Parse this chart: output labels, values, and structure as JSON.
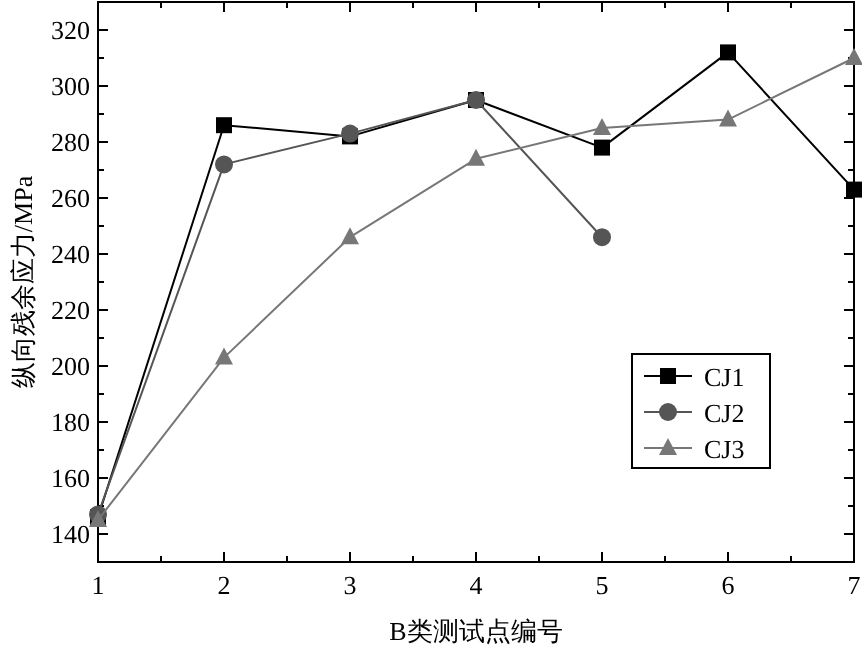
{
  "chart_data": {
    "type": "line",
    "xlabel": "B类测试点编号",
    "ylabel": "纵向残余应力/MPa",
    "x": [
      1,
      2,
      3,
      4,
      5,
      6,
      7
    ],
    "series": [
      {
        "name": "CJ1",
        "color": "#000000",
        "marker": "square",
        "values": [
          146,
          286,
          282,
          295,
          278,
          312,
          263
        ]
      },
      {
        "name": "CJ2",
        "color": "#555555",
        "marker": "circle",
        "values": [
          147,
          272,
          283,
          295,
          246,
          null,
          null
        ]
      },
      {
        "name": "CJ3",
        "color": "#777777",
        "marker": "triangle",
        "values": [
          145,
          203,
          246,
          274,
          285,
          288,
          310
        ]
      }
    ],
    "xlim": [
      1,
      7
    ],
    "xticks": [
      1,
      2,
      3,
      4,
      5,
      6,
      7
    ],
    "ylim": [
      130,
      330
    ],
    "yticks": [
      140,
      160,
      180,
      200,
      220,
      240,
      260,
      280,
      300,
      320
    ],
    "grid": false,
    "legend": "bottom right",
    "line_style": "solid"
  }
}
